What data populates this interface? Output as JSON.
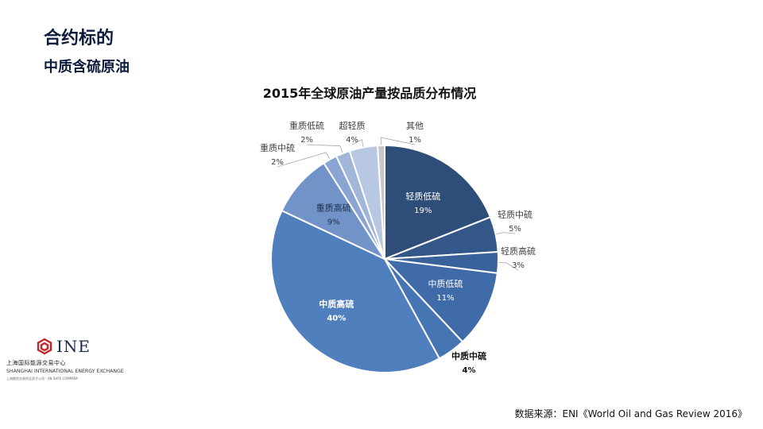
{
  "header": {
    "title": "合约标的",
    "subtitle": "中质含硫原油"
  },
  "chart_data": {
    "type": "pie",
    "title": "2015年全球原油产量按品质分布情况",
    "slices": [
      {
        "label": "轻质低硫",
        "value": 19,
        "value_label": "19%",
        "color": "#2e4d78",
        "label_pos": "inside"
      },
      {
        "label": "轻质中硫",
        "value": 5,
        "value_label": "5%",
        "color": "#34578a",
        "label_pos": "outside"
      },
      {
        "label": "轻质高硫",
        "value": 3,
        "value_label": "3%",
        "color": "#3a629a",
        "label_pos": "outside"
      },
      {
        "label": "中质低硫",
        "value": 11,
        "value_label": "11%",
        "color": "#3f6ca8",
        "label_pos": "inside"
      },
      {
        "label": "中质中硫",
        "value": 4,
        "value_label": "4%",
        "color": "#4675b4",
        "label_pos": "outside-bold"
      },
      {
        "label": "中质高硫",
        "value": 40,
        "value_label": "40%",
        "color": "#4f7fbc",
        "label_pos": "inside-bold"
      },
      {
        "label": "重质高硫",
        "value": 9,
        "value_label": "9%",
        "color": "#7193c7",
        "label_pos": "inside-dark"
      },
      {
        "label": "重质中硫",
        "value": 2,
        "value_label": "2%",
        "color": "#8aa5d1",
        "label_pos": "outside"
      },
      {
        "label": "重质低硫",
        "value": 2,
        "value_label": "2%",
        "color": "#a2b6da",
        "label_pos": "outside"
      },
      {
        "label": "超轻质",
        "value": 4,
        "value_label": "4%",
        "color": "#b8c7e2",
        "label_pos": "outside"
      },
      {
        "label": "其他",
        "value": 1,
        "value_label": "1%",
        "color": "#c4c8ce",
        "label_pos": "outside"
      }
    ]
  },
  "logo": {
    "name": "INE",
    "cn": "上海国际能源交易中心",
    "en": "SHANGHAI INTERNATIONAL ENERGY EXCHANGE",
    "tag": "上海期货交易所全资子公司 · AN SHFE COMPANY",
    "color": "#c0282d"
  },
  "footer": {
    "source": "数据来源：ENI《World Oil and Gas Review 2016》"
  }
}
